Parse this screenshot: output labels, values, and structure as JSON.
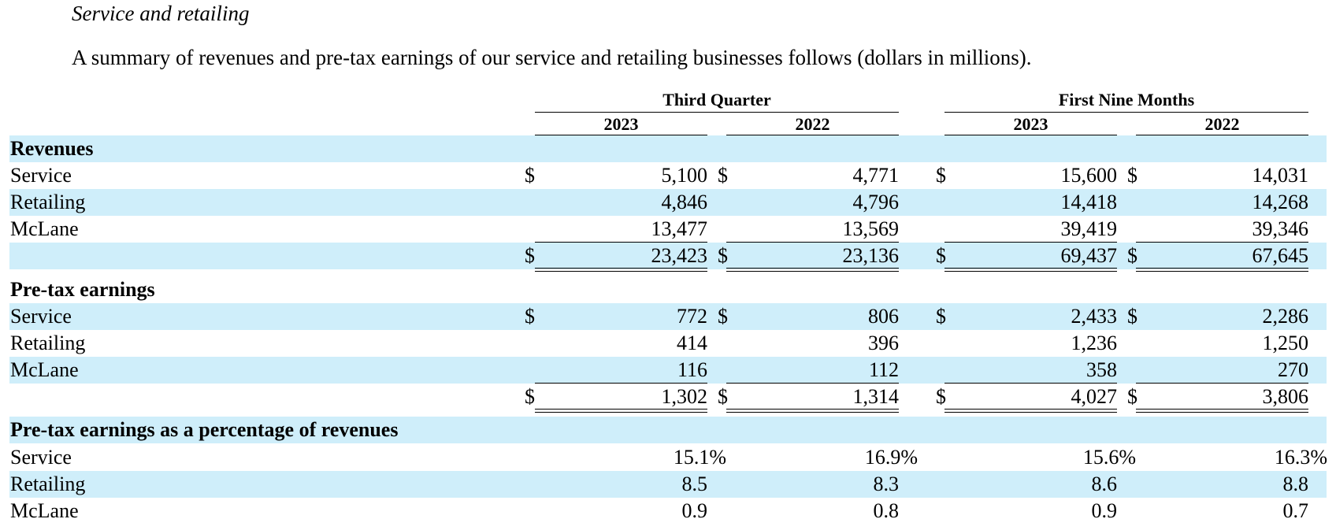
{
  "heading": "Service and retailing",
  "intro": "A summary of revenues and pre-tax earnings of our service and retailing businesses follows (dollars in millions).",
  "column_groups": [
    "Third Quarter",
    "First Nine Months"
  ],
  "years": [
    "2023",
    "2022",
    "2023",
    "2022"
  ],
  "currency_symbol": "$",
  "rows": [
    {
      "label": "Revenues",
      "type": "section",
      "shaded": true
    },
    {
      "label": "Service",
      "type": "data",
      "shaded": false,
      "currency": true,
      "values": [
        "5,100",
        "4,771",
        "15,600",
        "14,031"
      ]
    },
    {
      "label": "Retailing",
      "type": "data",
      "shaded": true,
      "currency": false,
      "values": [
        "4,846",
        "4,796",
        "14,418",
        "14,268"
      ]
    },
    {
      "label": "McLane",
      "type": "data",
      "shaded": false,
      "currency": false,
      "underline": "single",
      "values": [
        "13,477",
        "13,569",
        "39,419",
        "39,346"
      ]
    },
    {
      "label": "",
      "type": "total",
      "shaded": true,
      "currency": true,
      "underline": "double",
      "values": [
        "23,423",
        "23,136",
        "69,437",
        "67,645"
      ]
    },
    {
      "label": "Pre-tax earnings",
      "type": "section",
      "shaded": false
    },
    {
      "label": "Service",
      "type": "data",
      "shaded": true,
      "currency": true,
      "values": [
        "772",
        "806",
        "2,433",
        "2,286"
      ]
    },
    {
      "label": "Retailing",
      "type": "data",
      "shaded": false,
      "currency": false,
      "values": [
        "414",
        "396",
        "1,236",
        "1,250"
      ]
    },
    {
      "label": "McLane",
      "type": "data",
      "shaded": true,
      "currency": false,
      "underline": "single",
      "values": [
        "116",
        "112",
        "358",
        "270"
      ]
    },
    {
      "label": "",
      "type": "total",
      "shaded": false,
      "currency": true,
      "underline": "double",
      "values": [
        "1,302",
        "1,314",
        "4,027",
        "3,806"
      ]
    },
    {
      "label": "Pre-tax earnings as a percentage of revenues",
      "type": "section",
      "shaded": true
    },
    {
      "label": "Service",
      "type": "data",
      "shaded": false,
      "currency": false,
      "percent": true,
      "values": [
        "15.1%",
        "16.9%",
        "15.6%",
        "16.3%"
      ]
    },
    {
      "label": "Retailing",
      "type": "data",
      "shaded": true,
      "currency": false,
      "values": [
        "8.5",
        "8.3",
        "8.6",
        "8.8"
      ]
    },
    {
      "label": "McLane",
      "type": "data",
      "shaded": false,
      "currency": false,
      "values": [
        "0.9",
        "0.8",
        "0.9",
        "0.7"
      ]
    }
  ]
}
